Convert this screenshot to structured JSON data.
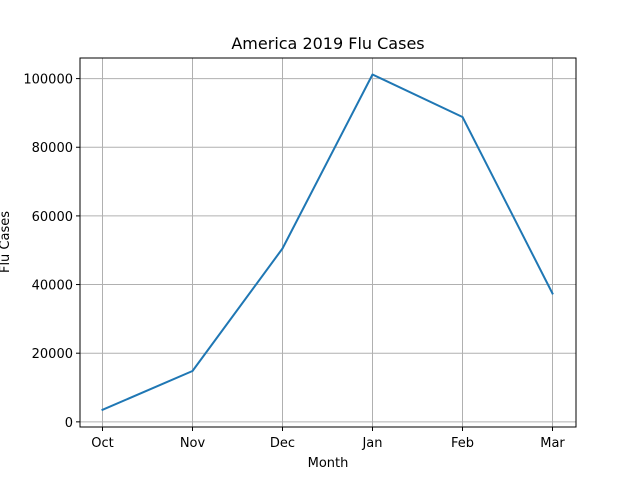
{
  "chart_data": {
    "type": "line",
    "title": "America 2019 Flu Cases",
    "xlabel": "Month",
    "ylabel": "Flu Cases",
    "categories": [
      "Oct",
      "Nov",
      "Dec",
      "Jan",
      "Feb",
      "Mar"
    ],
    "series": [
      {
        "values": [
          3500,
          14800,
          50500,
          101200,
          88800,
          37400
        ]
      }
    ],
    "ylim": [
      -1500,
      106000
    ],
    "yticks": [
      0,
      20000,
      40000,
      60000,
      80000,
      100000
    ],
    "ytick_labels": [
      "0",
      "20000",
      "40000",
      "60000",
      "80000",
      "100000"
    ],
    "grid": true,
    "line_color": "#1f77b4",
    "grid_color": "#b0b0b0"
  }
}
